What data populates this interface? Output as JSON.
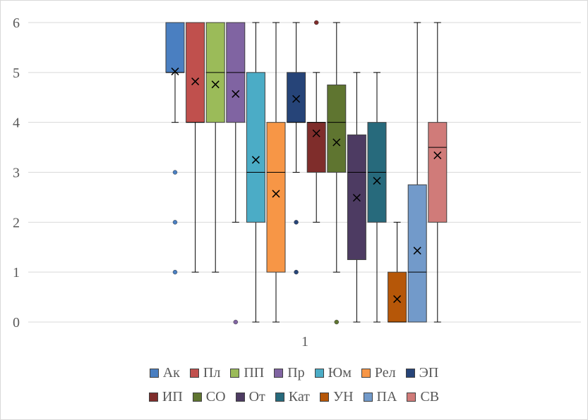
{
  "chart_data": {
    "type": "boxplot",
    "title": "",
    "xlabel": "",
    "ylabel": "",
    "categories": [
      "1"
    ],
    "ylim": [
      0,
      6
    ],
    "yticks": [
      0,
      1,
      2,
      3,
      4,
      5,
      6
    ],
    "grid": true,
    "legend_position": "bottom",
    "series": [
      {
        "name": "Ак",
        "color": "#4a7fc1",
        "min": 4,
        "q1": 5,
        "median": 5,
        "q3": 6,
        "max": 6,
        "mean": 5.02,
        "outliers": [
          3,
          2,
          1
        ]
      },
      {
        "name": "Пл",
        "color": "#c0504d",
        "min": 1,
        "q1": 4,
        "median": 4,
        "q3": 6,
        "max": 6,
        "mean": 4.82,
        "outliers": []
      },
      {
        "name": "ПП",
        "color": "#9bbb59",
        "min": 1,
        "q1": 4,
        "median": 5,
        "q3": 6,
        "max": 6,
        "mean": 4.76,
        "outliers": []
      },
      {
        "name": "Пр",
        "color": "#8064a2",
        "min": 2,
        "q1": 4,
        "median": 5,
        "q3": 6,
        "max": 6,
        "mean": 4.57,
        "outliers": [
          0
        ]
      },
      {
        "name": "Юм",
        "color": "#4bacc6",
        "min": 0,
        "q1": 2,
        "median": 3,
        "q3": 5,
        "max": 6,
        "mean": 3.25,
        "outliers": []
      },
      {
        "name": "Рел",
        "color": "#f79646",
        "min": 0,
        "q1": 1,
        "median": 3,
        "q3": 4,
        "max": 6,
        "mean": 2.57,
        "outliers": []
      },
      {
        "name": "ЭП",
        "color": "#264478",
        "min": 3,
        "q1": 4,
        "median": 4,
        "q3": 5,
        "max": 6,
        "mean": 4.47,
        "outliers": [
          2,
          1
        ]
      },
      {
        "name": "ИП",
        "color": "#7f2d2b",
        "min": 2,
        "q1": 3,
        "median": 4,
        "q3": 4,
        "max": 5,
        "mean": 3.78,
        "outliers": [
          6
        ]
      },
      {
        "name": "СО",
        "color": "#5f7530",
        "min": 1,
        "q1": 3,
        "median": 4,
        "q3": 4.75,
        "max": 6,
        "mean": 3.6,
        "outliers": [
          0
        ]
      },
      {
        "name": "От",
        "color": "#4d3b62",
        "min": 0,
        "q1": 1.25,
        "median": 3,
        "q3": 3.75,
        "max": 5,
        "mean": 2.49,
        "outliers": []
      },
      {
        "name": "Кат",
        "color": "#276a7c",
        "min": 0,
        "q1": 2,
        "median": 3,
        "q3": 4,
        "max": 5,
        "mean": 2.83,
        "outliers": []
      },
      {
        "name": "УН",
        "color": "#b65708",
        "min": 0,
        "q1": 0,
        "median": 0,
        "q3": 1,
        "max": 2,
        "mean": 0.46,
        "outliers": []
      },
      {
        "name": "ПА",
        "color": "#729aca",
        "min": 0,
        "q1": 0,
        "median": 1,
        "q3": 2.75,
        "max": 6,
        "mean": 1.43,
        "outliers": []
      },
      {
        "name": "СВ",
        "color": "#d07b79",
        "min": 0,
        "q1": 2,
        "median": 3.5,
        "q3": 4,
        "max": 6,
        "mean": 3.34,
        "outliers": []
      }
    ]
  }
}
